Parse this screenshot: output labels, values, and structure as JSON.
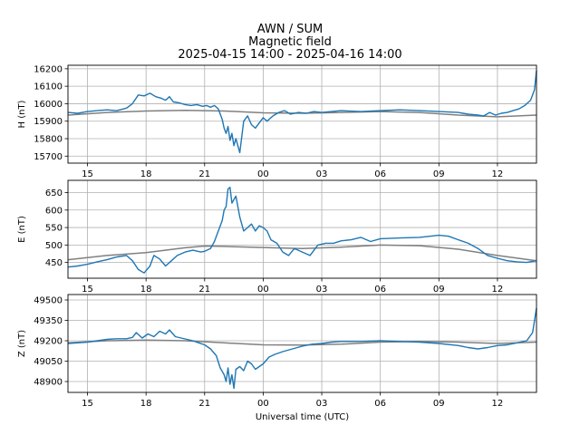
{
  "header": {
    "line1": "AWN / SUM",
    "line2": "Magnetic field",
    "line3": "2025-04-15 14:00 - 2025-04-16 14:00"
  },
  "colors": {
    "measured": "#1f77b4",
    "baseline": "#808080",
    "grid": "#b0b0b0"
  },
  "chart_data": [
    {
      "type": "line",
      "ylabel": "H (nT)",
      "xlabel": "",
      "x_ticklabels": [
        "15",
        "18",
        "21",
        "00",
        "03",
        "06",
        "09",
        "12"
      ],
      "x_tick_hours": [
        15,
        18,
        21,
        24,
        27,
        30,
        33,
        36
      ],
      "xlim_hours": [
        14,
        38
      ],
      "ylim": [
        15660,
        16220
      ],
      "yticks": [
        15700,
        15800,
        15900,
        16000,
        16100,
        16200
      ],
      "grid": true,
      "series": [
        {
          "role": "measured",
          "x": [
            14.0,
            14.5,
            15.0,
            15.5,
            16.0,
            16.5,
            17.0,
            17.3,
            17.6,
            17.9,
            18.2,
            18.5,
            18.8,
            19.0,
            19.2,
            19.4,
            19.7,
            20.0,
            20.3,
            20.6,
            20.9,
            21.1,
            21.3,
            21.5,
            21.7,
            21.9,
            22.0,
            22.1,
            22.2,
            22.3,
            22.4,
            22.5,
            22.6,
            22.8,
            23.0,
            23.2,
            23.4,
            23.6,
            23.8,
            24.0,
            24.2,
            24.5,
            24.8,
            25.1,
            25.4,
            25.8,
            26.2,
            26.6,
            27.0,
            27.5,
            28.0,
            29.0,
            30.0,
            31.0,
            32.0,
            33.0,
            34.0,
            34.5,
            35.0,
            35.3,
            35.6,
            35.9,
            36.2,
            36.5,
            36.8,
            37.1,
            37.4,
            37.7,
            37.9,
            38.0
          ],
          "y": [
            15950,
            15945,
            15955,
            15960,
            15965,
            15960,
            15975,
            16000,
            16050,
            16045,
            16060,
            16040,
            16030,
            16020,
            16040,
            16010,
            16005,
            15995,
            15990,
            15995,
            15985,
            15990,
            15980,
            15990,
            15970,
            15910,
            15860,
            15830,
            15870,
            15790,
            15830,
            15760,
            15800,
            15720,
            15900,
            15930,
            15880,
            15860,
            15890,
            15920,
            15900,
            15930,
            15950,
            15960,
            15940,
            15950,
            15945,
            15955,
            15950,
            15955,
            15960,
            15955,
            15960,
            15965,
            15960,
            15955,
            15950,
            15940,
            15935,
            15930,
            15950,
            15935,
            15945,
            15950,
            15960,
            15970,
            15990,
            16020,
            16080,
            16190
          ]
        },
        {
          "role": "baseline",
          "x": [
            14,
            16,
            18,
            20,
            22,
            24,
            26,
            28,
            30,
            32,
            34,
            36,
            38
          ],
          "y": [
            15935,
            15950,
            15958,
            15962,
            15958,
            15948,
            15945,
            15950,
            15955,
            15950,
            15935,
            15925,
            15935
          ]
        }
      ]
    },
    {
      "type": "line",
      "ylabel": "E (nT)",
      "xlabel": "",
      "x_ticklabels": [
        "15",
        "18",
        "21",
        "00",
        "03",
        "06",
        "09",
        "12"
      ],
      "x_tick_hours": [
        15,
        18,
        21,
        24,
        27,
        30,
        33,
        36
      ],
      "xlim_hours": [
        14,
        38
      ],
      "ylim": [
        405,
        685
      ],
      "yticks": [
        450,
        500,
        550,
        600,
        650
      ],
      "grid": true,
      "series": [
        {
          "role": "measured",
          "x": [
            14.0,
            14.5,
            15.0,
            15.5,
            16.0,
            16.5,
            17.0,
            17.3,
            17.6,
            17.9,
            18.2,
            18.4,
            18.7,
            19.0,
            19.3,
            19.6,
            20.0,
            20.4,
            20.8,
            21.0,
            21.3,
            21.5,
            21.7,
            21.9,
            22.0,
            22.1,
            22.2,
            22.3,
            22.4,
            22.6,
            22.8,
            23.0,
            23.2,
            23.4,
            23.6,
            23.8,
            24.0,
            24.2,
            24.4,
            24.7,
            25.0,
            25.3,
            25.6,
            26.0,
            26.4,
            26.8,
            27.2,
            27.6,
            28.0,
            28.5,
            29.0,
            29.5,
            30.0,
            31.0,
            32.0,
            33.0,
            33.5,
            34.0,
            34.5,
            35.0,
            35.5,
            36.0,
            36.5,
            37.0,
            37.5,
            38.0
          ],
          "y": [
            437,
            440,
            445,
            452,
            458,
            466,
            470,
            455,
            430,
            420,
            440,
            470,
            460,
            440,
            455,
            470,
            480,
            485,
            480,
            482,
            490,
            510,
            540,
            570,
            600,
            610,
            660,
            665,
            620,
            640,
            580,
            540,
            550,
            560,
            540,
            555,
            550,
            540,
            515,
            505,
            480,
            470,
            490,
            480,
            470,
            500,
            505,
            505,
            512,
            515,
            522,
            510,
            518,
            520,
            522,
            528,
            525,
            515,
            505,
            490,
            470,
            462,
            455,
            452,
            450,
            455
          ]
        },
        {
          "role": "baseline",
          "x": [
            14,
            16,
            18,
            20,
            21,
            22,
            24,
            26,
            28,
            30,
            32,
            34,
            36,
            38
          ],
          "y": [
            458,
            470,
            478,
            492,
            497,
            496,
            493,
            490,
            494,
            500,
            498,
            488,
            470,
            455
          ]
        }
      ]
    },
    {
      "type": "line",
      "ylabel": "Z (nT)",
      "xlabel": "Universal time (UTC)",
      "x_ticklabels": [
        "15",
        "18",
        "21",
        "00",
        "03",
        "06",
        "09",
        "12"
      ],
      "x_tick_hours": [
        15,
        18,
        21,
        24,
        27,
        30,
        33,
        36
      ],
      "xlim_hours": [
        14,
        38
      ],
      "ylim": [
        48820,
        49540
      ],
      "yticks": [
        48900,
        49050,
        49200,
        49350,
        49500
      ],
      "grid": true,
      "series": [
        {
          "role": "measured",
          "x": [
            14.0,
            14.5,
            15.0,
            15.5,
            16.0,
            16.5,
            17.0,
            17.3,
            17.5,
            17.8,
            18.1,
            18.4,
            18.7,
            19.0,
            19.2,
            19.5,
            19.8,
            20.1,
            20.4,
            20.7,
            21.0,
            21.3,
            21.6,
            21.8,
            22.0,
            22.1,
            22.2,
            22.3,
            22.4,
            22.5,
            22.6,
            22.8,
            23.0,
            23.2,
            23.4,
            23.6,
            23.8,
            24.0,
            24.3,
            24.6,
            25.0,
            25.5,
            26.0,
            26.5,
            27.0,
            27.5,
            28.0,
            29.0,
            30.0,
            31.0,
            32.0,
            33.0,
            34.0,
            34.5,
            35.0,
            35.5,
            36.0,
            36.5,
            37.0,
            37.5,
            37.8,
            38.0
          ],
          "y": [
            49180,
            49185,
            49190,
            49200,
            49210,
            49215,
            49215,
            49225,
            49260,
            49220,
            49250,
            49230,
            49270,
            49250,
            49280,
            49230,
            49220,
            49210,
            49200,
            49185,
            49170,
            49140,
            49090,
            49000,
            48950,
            48900,
            49000,
            48880,
            48950,
            48850,
            48990,
            49010,
            48980,
            49050,
            49030,
            48990,
            49010,
            49030,
            49080,
            49100,
            49120,
            49140,
            49160,
            49175,
            49180,
            49190,
            49195,
            49195,
            49200,
            49195,
            49190,
            49180,
            49165,
            49150,
            49140,
            49150,
            49165,
            49170,
            49185,
            49200,
            49260,
            49440
          ]
        },
        {
          "role": "baseline",
          "x": [
            14,
            16,
            18,
            20,
            22,
            24,
            26,
            28,
            30,
            32,
            34,
            36,
            38
          ],
          "y": [
            49185,
            49200,
            49205,
            49200,
            49185,
            49170,
            49168,
            49175,
            49190,
            49195,
            49190,
            49180,
            49190
          ]
        }
      ]
    }
  ]
}
